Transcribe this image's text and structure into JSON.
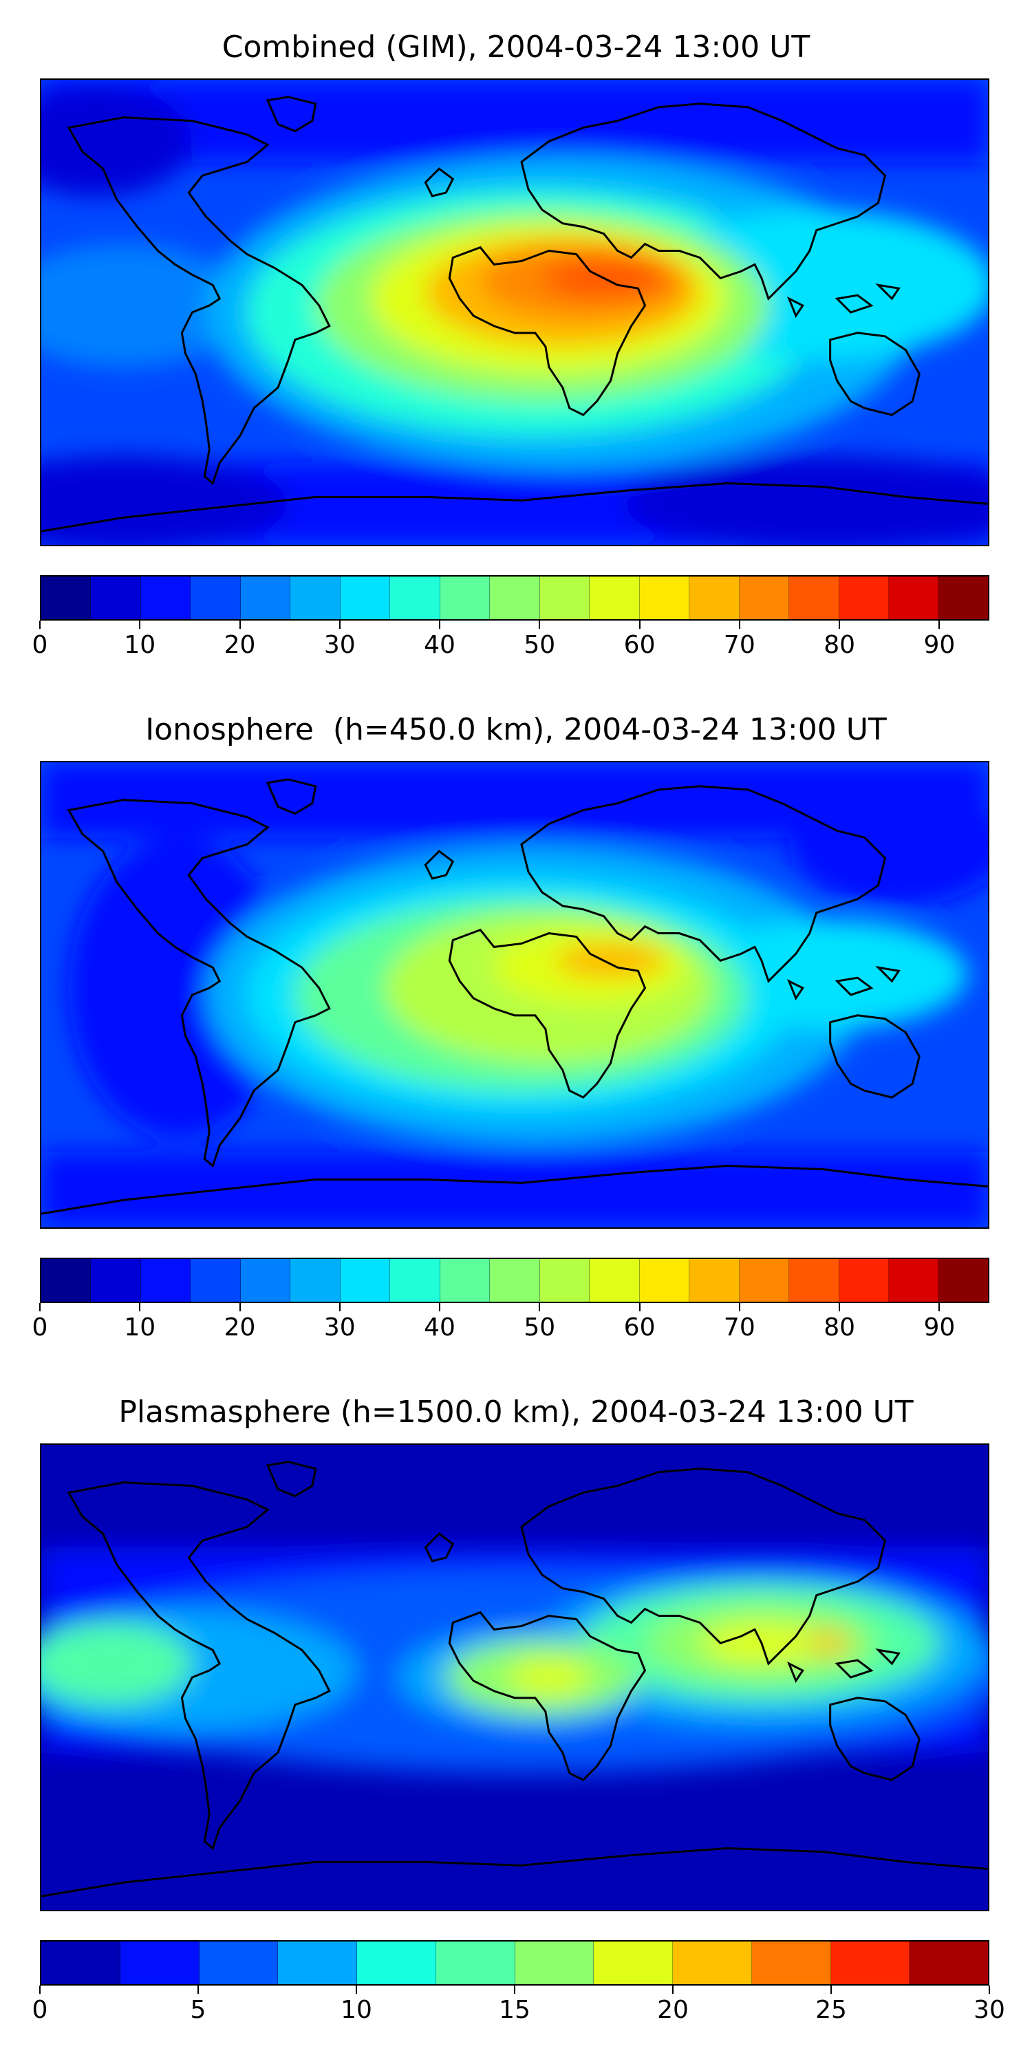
{
  "panels": [
    {
      "title": "Combined (GIM), 2004-03-24 13:00 UT",
      "colorbar": {
        "min": 0,
        "max": 95,
        "step": 5,
        "ticks": [
          "0",
          "10",
          "20",
          "30",
          "40",
          "50",
          "60",
          "70",
          "80",
          "90"
        ],
        "tick_values": [
          0,
          10,
          20,
          30,
          40,
          50,
          60,
          70,
          80,
          90
        ],
        "colors": [
          "#00008f",
          "#0000d6",
          "#0010ff",
          "#0048ff",
          "#0080ff",
          "#00b0ff",
          "#00e2ff",
          "#20ffd8",
          "#5cff9c",
          "#8cff6c",
          "#b4ff44",
          "#e0ff18",
          "#ffe800",
          "#ffb800",
          "#ff8800",
          "#ff5800",
          "#ff2400",
          "#d80000",
          "#8a0000"
        ]
      }
    },
    {
      "title": "Ionosphere  (h=450.0 km), 2004-03-24 13:00 UT",
      "colorbar": {
        "min": 0,
        "max": 95,
        "step": 5,
        "ticks": [
          "0",
          "10",
          "20",
          "30",
          "40",
          "50",
          "60",
          "70",
          "80",
          "90"
        ],
        "tick_values": [
          0,
          10,
          20,
          30,
          40,
          50,
          60,
          70,
          80,
          90
        ],
        "colors": [
          "#00008f",
          "#0000d6",
          "#0010ff",
          "#0048ff",
          "#0080ff",
          "#00b0ff",
          "#00e2ff",
          "#20ffd8",
          "#5cff9c",
          "#8cff6c",
          "#b4ff44",
          "#e0ff18",
          "#ffe800",
          "#ffb800",
          "#ff8800",
          "#ff5800",
          "#ff2400",
          "#d80000",
          "#8a0000"
        ]
      }
    },
    {
      "title": "Plasmasphere (h=1500.0 km), 2004-03-24 13:00 UT",
      "colorbar": {
        "min": 0,
        "max": 30,
        "step": 2.5,
        "ticks": [
          "0",
          "5",
          "10",
          "15",
          "20",
          "25",
          "30"
        ],
        "tick_values": [
          0,
          5,
          10,
          15,
          20,
          25,
          30
        ],
        "colors": [
          "#0000b4",
          "#0010ff",
          "#0058ff",
          "#00a8ff",
          "#18ffe0",
          "#50ffa8",
          "#8cff6c",
          "#e0ff18",
          "#ffc000",
          "#ff7800",
          "#ff2800",
          "#a80000"
        ]
      }
    }
  ]
}
